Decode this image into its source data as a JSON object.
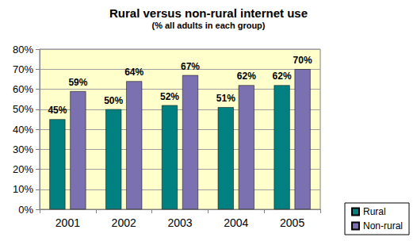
{
  "chart_data": {
    "type": "bar",
    "title": "Rural versus non-rural internet use",
    "subtitle": "(% all adults in each group)",
    "categories": [
      "2001",
      "2002",
      "2003",
      "2004",
      "2005"
    ],
    "series": [
      {
        "name": "Rural",
        "color": "#008080",
        "values": [
          45,
          50,
          52,
          51,
          62
        ],
        "value_labels": [
          "45%",
          "50%",
          "52%",
          "51%",
          "62%"
        ]
      },
      {
        "name": "Non-rural",
        "color": "#7b70b0",
        "values": [
          59,
          64,
          67,
          62,
          70
        ],
        "value_labels": [
          "59%",
          "64%",
          "67%",
          "62%",
          "70%"
        ]
      }
    ],
    "ylim": [
      0,
      80
    ],
    "yticks": [
      {
        "value": 0,
        "label": "0%"
      },
      {
        "value": 10,
        "label": "10%"
      },
      {
        "value": 20,
        "label": "20%"
      },
      {
        "value": 30,
        "label": "30%"
      },
      {
        "value": 40,
        "label": "40%"
      },
      {
        "value": 50,
        "label": "50%"
      },
      {
        "value": 60,
        "label": "60%"
      },
      {
        "value": 70,
        "label": "70%"
      },
      {
        "value": 80,
        "label": "80%"
      }
    ],
    "grid": true,
    "legend": "lower right",
    "data_labels": true
  }
}
